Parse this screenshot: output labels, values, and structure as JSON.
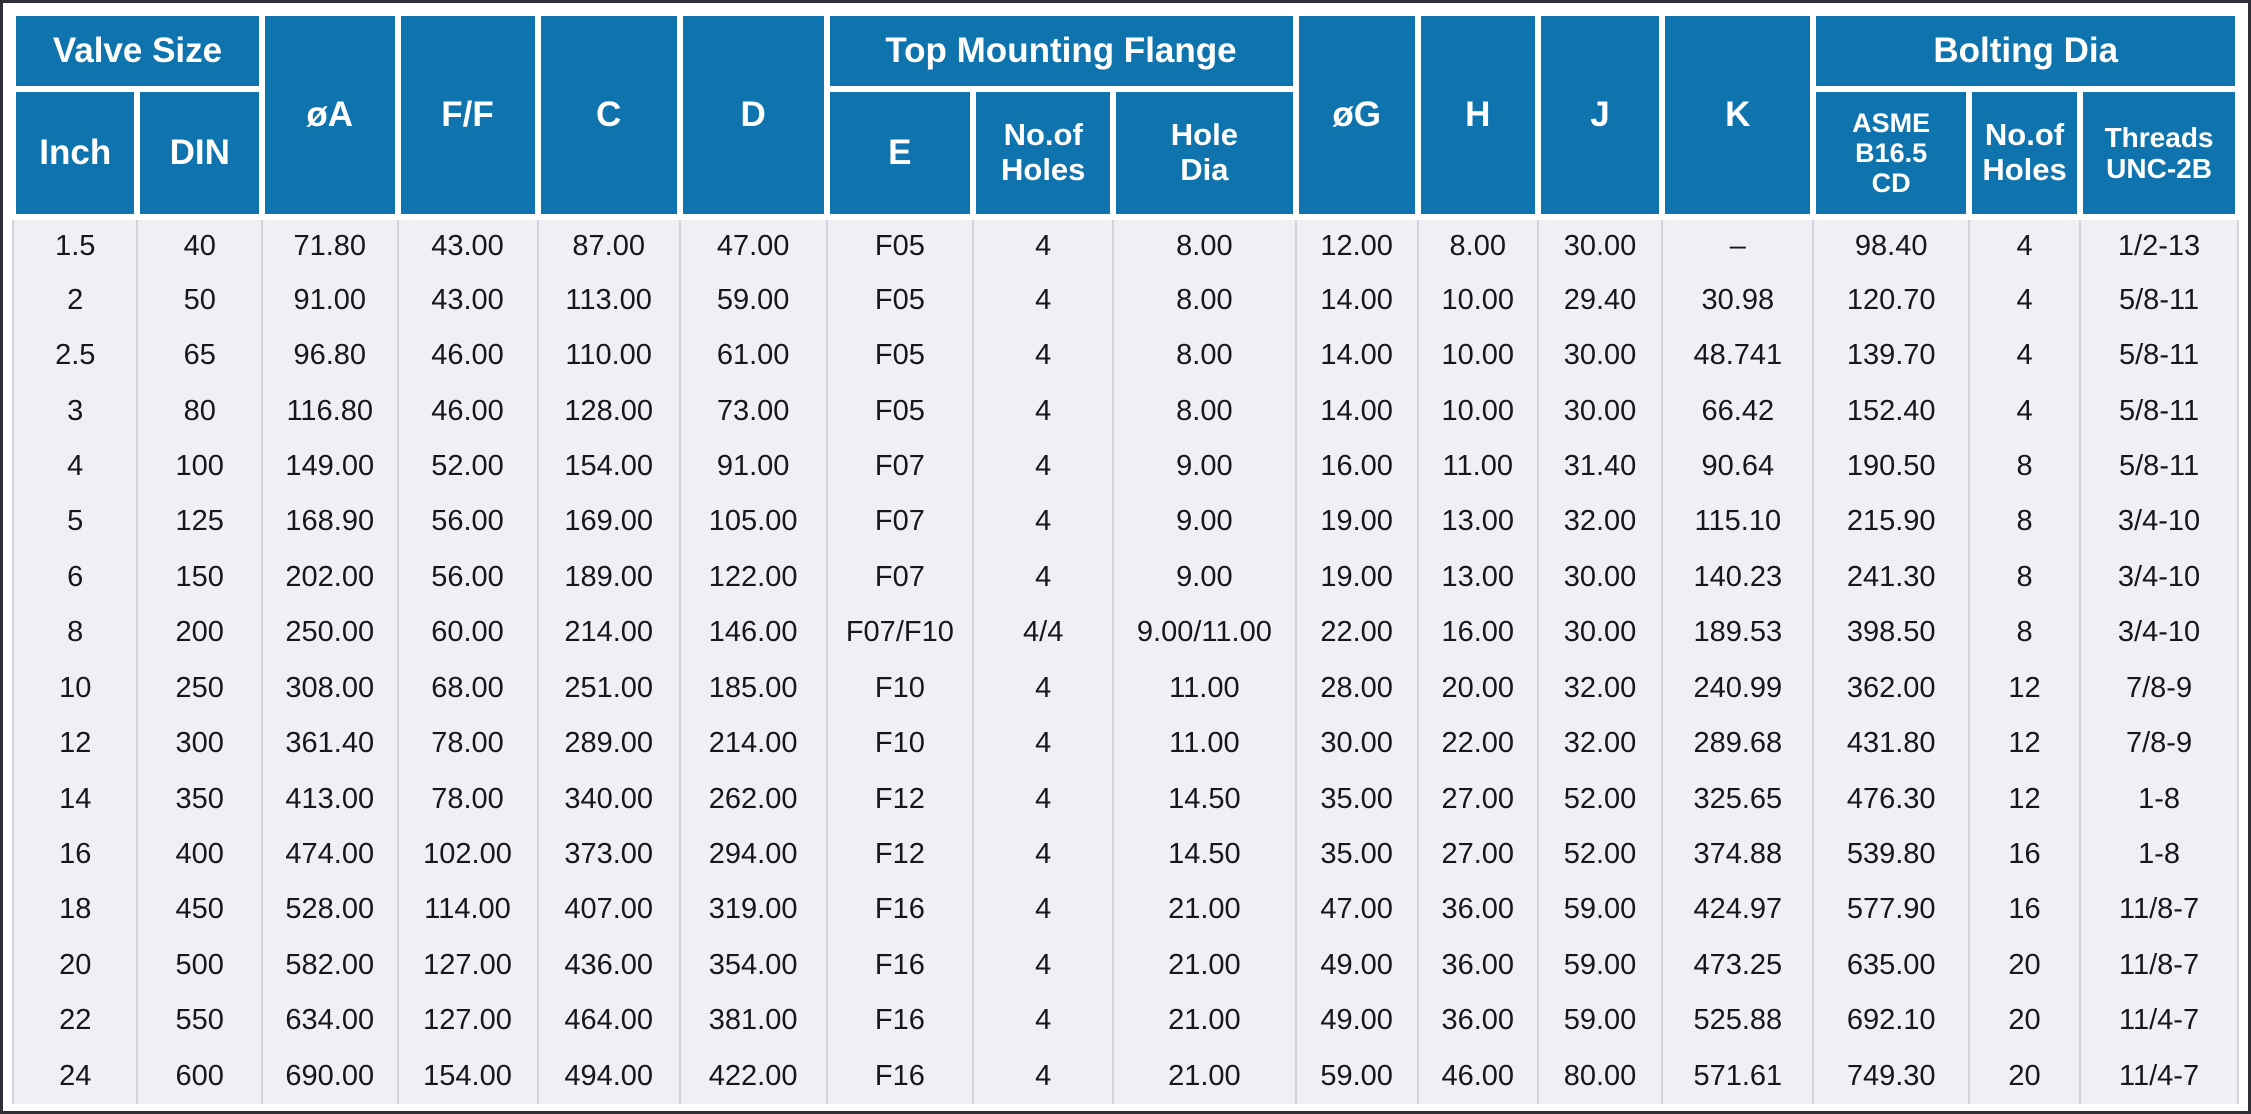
{
  "colors": {
    "header_bg": "#0f74ae",
    "header_text": "#ffffff",
    "body_bg": "#f0eff4",
    "body_text": "#16161e",
    "grid": "#d2d2da",
    "frame": "#2e2e36",
    "gutter": "#ffffff"
  },
  "header": {
    "valve_size": "Valve Size",
    "inch": "Inch",
    "din": "DIN",
    "dia_a": "øA",
    "ff": "F/F",
    "c": "C",
    "d": "D",
    "top_mounting_flange": "Top Mounting Flange",
    "e": "E",
    "tmf_no_of_holes": "No.of\nHoles",
    "hole_dia": "Hole\nDia",
    "dia_g": "øG",
    "h": "H",
    "j": "J",
    "k": "K",
    "bolting_dia": "Bolting Dia",
    "asme": "ASME\nB16.5\nCD",
    "bolt_no_of_holes": "No.of\nHoles",
    "threads": "Threads\nUNC-2B"
  },
  "chart_data": {
    "type": "table",
    "column_groups": [
      {
        "label": "Valve Size",
        "columns": [
          "Inch",
          "DIN"
        ]
      },
      {
        "label": "øA",
        "columns": [
          "øA"
        ]
      },
      {
        "label": "F/F",
        "columns": [
          "F/F"
        ]
      },
      {
        "label": "C",
        "columns": [
          "C"
        ]
      },
      {
        "label": "D",
        "columns": [
          "D"
        ]
      },
      {
        "label": "Top Mounting Flange",
        "columns": [
          "E",
          "No.of Holes",
          "Hole Dia"
        ]
      },
      {
        "label": "øG",
        "columns": [
          "øG"
        ]
      },
      {
        "label": "H",
        "columns": [
          "H"
        ]
      },
      {
        "label": "J",
        "columns": [
          "J"
        ]
      },
      {
        "label": "K",
        "columns": [
          "K"
        ]
      },
      {
        "label": "Bolting Dia",
        "columns": [
          "ASME B16.5 CD",
          "No.of Holes",
          "Threads UNC-2B"
        ]
      }
    ],
    "columns": [
      "Inch",
      "DIN",
      "øA",
      "F/F",
      "C",
      "D",
      "E",
      "No.of Holes",
      "Hole Dia",
      "øG",
      "H",
      "J",
      "K",
      "ASME B16.5 CD",
      "No.of Holes",
      "Threads UNC-2B"
    ],
    "rows": [
      [
        "1.5",
        "40",
        "71.80",
        "43.00",
        "87.00",
        "47.00",
        "F05",
        "4",
        "8.00",
        "12.00",
        "8.00",
        "30.00",
        "–",
        "98.40",
        "4",
        "1/2-13"
      ],
      [
        "2",
        "50",
        "91.00",
        "43.00",
        "113.00",
        "59.00",
        "F05",
        "4",
        "8.00",
        "14.00",
        "10.00",
        "29.40",
        "30.98",
        "120.70",
        "4",
        "5/8-11"
      ],
      [
        "2.5",
        "65",
        "96.80",
        "46.00",
        "110.00",
        "61.00",
        "F05",
        "4",
        "8.00",
        "14.00",
        "10.00",
        "30.00",
        "48.741",
        "139.70",
        "4",
        "5/8-11"
      ],
      [
        "3",
        "80",
        "116.80",
        "46.00",
        "128.00",
        "73.00",
        "F05",
        "4",
        "8.00",
        "14.00",
        "10.00",
        "30.00",
        "66.42",
        "152.40",
        "4",
        "5/8-11"
      ],
      [
        "4",
        "100",
        "149.00",
        "52.00",
        "154.00",
        "91.00",
        "F07",
        "4",
        "9.00",
        "16.00",
        "11.00",
        "31.40",
        "90.64",
        "190.50",
        "8",
        "5/8-11"
      ],
      [
        "5",
        "125",
        "168.90",
        "56.00",
        "169.00",
        "105.00",
        "F07",
        "4",
        "9.00",
        "19.00",
        "13.00",
        "32.00",
        "115.10",
        "215.90",
        "8",
        "3/4-10"
      ],
      [
        "6",
        "150",
        "202.00",
        "56.00",
        "189.00",
        "122.00",
        "F07",
        "4",
        "9.00",
        "19.00",
        "13.00",
        "30.00",
        "140.23",
        "241.30",
        "8",
        "3/4-10"
      ],
      [
        "8",
        "200",
        "250.00",
        "60.00",
        "214.00",
        "146.00",
        "F07/F10",
        "4/4",
        "9.00/11.00",
        "22.00",
        "16.00",
        "30.00",
        "189.53",
        "398.50",
        "8",
        "3/4-10"
      ],
      [
        "10",
        "250",
        "308.00",
        "68.00",
        "251.00",
        "185.00",
        "F10",
        "4",
        "11.00",
        "28.00",
        "20.00",
        "32.00",
        "240.99",
        "362.00",
        "12",
        "7/8-9"
      ],
      [
        "12",
        "300",
        "361.40",
        "78.00",
        "289.00",
        "214.00",
        "F10",
        "4",
        "11.00",
        "30.00",
        "22.00",
        "32.00",
        "289.68",
        "431.80",
        "12",
        "7/8-9"
      ],
      [
        "14",
        "350",
        "413.00",
        "78.00",
        "340.00",
        "262.00",
        "F12",
        "4",
        "14.50",
        "35.00",
        "27.00",
        "52.00",
        "325.65",
        "476.30",
        "12",
        "1-8"
      ],
      [
        "16",
        "400",
        "474.00",
        "102.00",
        "373.00",
        "294.00",
        "F12",
        "4",
        "14.50",
        "35.00",
        "27.00",
        "52.00",
        "374.88",
        "539.80",
        "16",
        "1-8"
      ],
      [
        "18",
        "450",
        "528.00",
        "114.00",
        "407.00",
        "319.00",
        "F16",
        "4",
        "21.00",
        "47.00",
        "36.00",
        "59.00",
        "424.97",
        "577.90",
        "16",
        "11/8-7"
      ],
      [
        "20",
        "500",
        "582.00",
        "127.00",
        "436.00",
        "354.00",
        "F16",
        "4",
        "21.00",
        "49.00",
        "36.00",
        "59.00",
        "473.25",
        "635.00",
        "20",
        "11/8-7"
      ],
      [
        "22",
        "550",
        "634.00",
        "127.00",
        "464.00",
        "381.00",
        "F16",
        "4",
        "21.00",
        "49.00",
        "36.00",
        "59.00",
        "525.88",
        "692.10",
        "20",
        "11/4-7"
      ],
      [
        "24",
        "600",
        "690.00",
        "154.00",
        "494.00",
        "422.00",
        "F16",
        "4",
        "21.00",
        "59.00",
        "46.00",
        "80.00",
        "571.61",
        "749.30",
        "20",
        "11/4-7"
      ]
    ]
  }
}
